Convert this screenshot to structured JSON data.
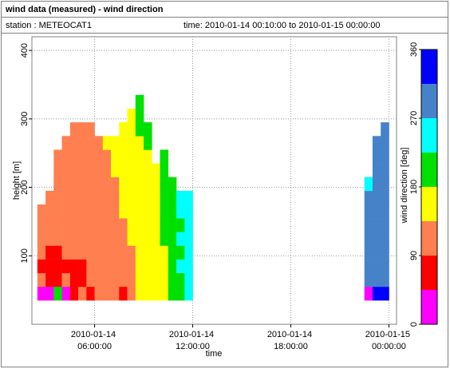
{
  "chart_data": {
    "type": "heatmap",
    "title": "wind data (measured) - wind direction",
    "station": "station : METEOCAT1",
    "period": "time: 2010-01-14 00:10:00 to 2010-01-15 00:00:00",
    "x_label": "time",
    "y_label": "height [m]",
    "xlim": [
      "2010-01-14 02:10:00",
      "2010-01-15 00:28:00"
    ],
    "xticks": [
      "2010-01-14 06:00:00",
      "2010-01-14 12:00:00",
      "2010-01-14 18:00:00",
      "2010-01-15 00:00:00"
    ],
    "ylim": [
      0,
      420
    ],
    "yticks": [
      100,
      200,
      300,
      400
    ],
    "grid": true,
    "heights": [
      45,
      65,
      85,
      105,
      125,
      145,
      165,
      185,
      205,
      225,
      245,
      265,
      285,
      305,
      325,
      345
    ],
    "times": [
      "2010-01-14 02:45:00",
      "2010-01-14 03:15:00",
      "2010-01-14 03:45:00",
      "2010-01-14 04:15:00",
      "2010-01-14 04:45:00",
      "2010-01-14 05:15:00",
      "2010-01-14 05:45:00",
      "2010-01-14 06:15:00",
      "2010-01-14 06:45:00",
      "2010-01-14 07:15:00",
      "2010-01-14 07:45:00",
      "2010-01-14 08:15:00",
      "2010-01-14 08:45:00",
      "2010-01-14 09:15:00",
      "2010-01-14 09:45:00",
      "2010-01-14 10:15:00",
      "2010-01-14 10:45:00",
      "2010-01-14 11:15:00",
      "2010-01-14 11:45:00",
      "2010-01-14 22:45:00",
      "2010-01-14 23:15:00",
      "2010-01-14 23:45:00"
    ],
    "z": [
      [
        20,
        110,
        70,
        110,
        110,
        110,
        110,
        null,
        null,
        null,
        null,
        null,
        null,
        null,
        null,
        null
      ],
      [
        20,
        70,
        70,
        70,
        110,
        110,
        110,
        110,
        null,
        null,
        null,
        null,
        null,
        null,
        null,
        null
      ],
      [
        200,
        70,
        70,
        70,
        110,
        110,
        110,
        110,
        110,
        110,
        110,
        null,
        null,
        null,
        null,
        null
      ],
      [
        20,
        110,
        70,
        110,
        110,
        110,
        110,
        110,
        110,
        110,
        110,
        110,
        null,
        null,
        null,
        null
      ],
      [
        70,
        70,
        70,
        110,
        110,
        110,
        110,
        110,
        110,
        110,
        110,
        110,
        110,
        null,
        null,
        null
      ],
      [
        110,
        70,
        70,
        110,
        110,
        110,
        110,
        110,
        110,
        110,
        110,
        110,
        110,
        null,
        null,
        null
      ],
      [
        70,
        110,
        110,
        110,
        110,
        110,
        110,
        110,
        110,
        110,
        110,
        110,
        110,
        null,
        null,
        null
      ],
      [
        110,
        110,
        110,
        110,
        110,
        110,
        110,
        110,
        110,
        110,
        110,
        110,
        null,
        null,
        null,
        null
      ],
      [
        110,
        110,
        110,
        110,
        110,
        110,
        110,
        110,
        110,
        110,
        110,
        160,
        null,
        null,
        null,
        null
      ],
      [
        110,
        110,
        110,
        110,
        110,
        110,
        110,
        110,
        110,
        160,
        160,
        160,
        null,
        null,
        null,
        null
      ],
      [
        70,
        110,
        110,
        110,
        110,
        110,
        160,
        160,
        160,
        160,
        160,
        160,
        160,
        null,
        null,
        null
      ],
      [
        110,
        110,
        110,
        110,
        160,
        160,
        160,
        160,
        160,
        160,
        160,
        160,
        160,
        160,
        null,
        null
      ],
      [
        160,
        160,
        160,
        160,
        160,
        160,
        160,
        160,
        160,
        160,
        160,
        160,
        200,
        200,
        200,
        null
      ],
      [
        160,
        160,
        160,
        160,
        160,
        160,
        160,
        160,
        160,
        160,
        160,
        200,
        200,
        null,
        null,
        null
      ],
      [
        160,
        160,
        160,
        160,
        160,
        160,
        160,
        160,
        160,
        160,
        null,
        null,
        null,
        null,
        null,
        null
      ],
      [
        160,
        160,
        160,
        160,
        200,
        200,
        200,
        200,
        200,
        200,
        200,
        null,
        null,
        null,
        null,
        null
      ],
      [
        200,
        200,
        200,
        200,
        200,
        200,
        200,
        200,
        200,
        null,
        null,
        null,
        null,
        null,
        null,
        null
      ],
      [
        200,
        200,
        250,
        200,
        250,
        200,
        250,
        250,
        null,
        null,
        null,
        null,
        null,
        null,
        null,
        null
      ],
      [
        250,
        250,
        250,
        250,
        250,
        250,
        250,
        250,
        null,
        null,
        null,
        null,
        null,
        null,
        null,
        null
      ],
      [
        20,
        290,
        290,
        290,
        290,
        290,
        290,
        290,
        250,
        null,
        null,
        null,
        null,
        null,
        null,
        null
      ],
      [
        340,
        290,
        290,
        290,
        290,
        290,
        290,
        290,
        290,
        290,
        290,
        290,
        null,
        null,
        null,
        null
      ],
      [
        340,
        290,
        290,
        290,
        290,
        290,
        290,
        290,
        290,
        290,
        290,
        290,
        290,
        null,
        null,
        null
      ]
    ],
    "colorbar": {
      "label": "wind direction [deg]",
      "lim": [
        0,
        360
      ],
      "ticks": [
        0,
        90,
        180,
        270,
        360
      ],
      "bands": [
        {
          "from": 0,
          "to": 45,
          "color": "#ff00ff"
        },
        {
          "from": 45,
          "to": 90,
          "color": "#ff0000"
        },
        {
          "from": 90,
          "to": 135,
          "color": "#ff7f50"
        },
        {
          "from": 135,
          "to": 180,
          "color": "#ffff00"
        },
        {
          "from": 180,
          "to": 225,
          "color": "#00e000"
        },
        {
          "from": 225,
          "to": 270,
          "color": "#00ffff"
        },
        {
          "from": 270,
          "to": 315,
          "color": "#4682c8"
        },
        {
          "from": 315,
          "to": 360,
          "color": "#0000ff"
        }
      ]
    }
  }
}
